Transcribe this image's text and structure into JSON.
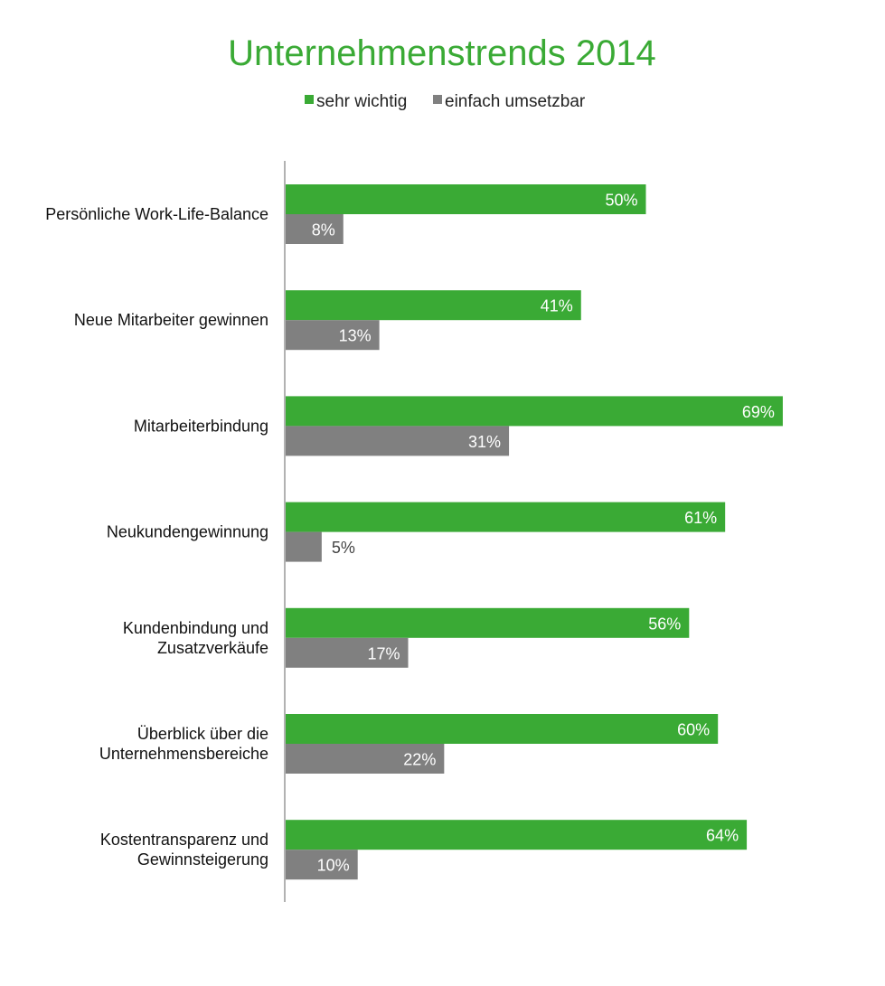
{
  "colors": {
    "green": "#3aaa35",
    "gray": "#808080",
    "title": "#3aaa35",
    "axis": "#666666"
  },
  "chart_data": {
    "type": "bar",
    "orientation": "horizontal",
    "title": "Unternehmenstrends 2014",
    "legend_position": "top-center",
    "xlabel": "",
    "ylabel": "",
    "xlim": [
      0,
      80
    ],
    "grid": false,
    "categories": [
      [
        "Persönliche Work-Life-Balance"
      ],
      [
        "Neue Mitarbeiter gewinnen"
      ],
      [
        "Mitarbeiterbindung"
      ],
      [
        "Neukundengewinnung"
      ],
      [
        "Kundenbindung und",
        "Zusatzverkäufe"
      ],
      [
        "Überblick über die",
        "Unternehmensbereiche"
      ],
      [
        "Kostentransparenz und",
        "Gewinnsteigerung"
      ]
    ],
    "series": [
      {
        "name": "sehr wichtig",
        "color": "#3aaa35",
        "values": [
          50,
          41,
          69,
          61,
          56,
          60,
          64
        ],
        "labels": [
          "50%",
          "41%",
          "69%",
          "61%",
          "56%",
          "60%",
          "64%"
        ]
      },
      {
        "name": "einfach umsetzbar",
        "color": "#808080",
        "values": [
          8,
          13,
          31,
          5,
          17,
          22,
          10
        ],
        "labels": [
          "8%",
          "13%",
          "31%",
          "5%",
          "17%",
          "22%",
          "10%"
        ]
      }
    ]
  }
}
